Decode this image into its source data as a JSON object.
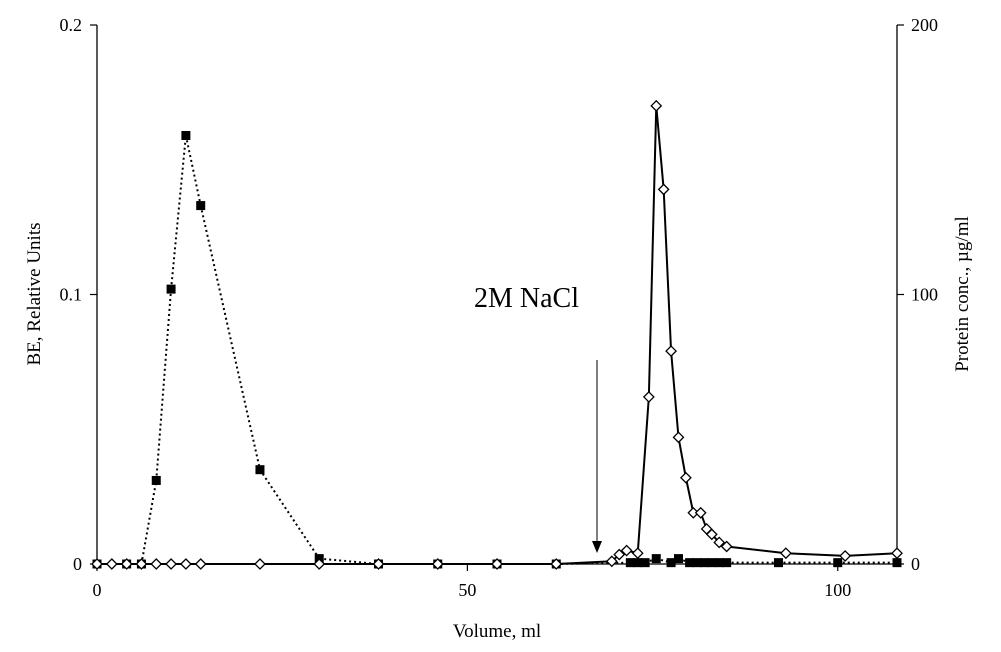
{
  "chart_data": {
    "type": "scatter",
    "xlabel": "Volume, ml",
    "ylabel_left": "BE, Relative Units",
    "ylabel_right": "Protein conc., µg/ml",
    "xlim": [
      0,
      108
    ],
    "ylim_left": [
      0,
      0.2
    ],
    "ylim_right": [
      0,
      200
    ],
    "x_ticks": [
      0,
      50,
      100
    ],
    "x_tick_labels": [
      "0",
      "50",
      "100"
    ],
    "y_left_ticks": [
      0,
      0.1,
      0.2
    ],
    "y_left_tick_labels": [
      "0",
      "0.1",
      "0.2"
    ],
    "y_right_ticks": [
      0,
      100,
      200
    ],
    "y_right_tick_labels": [
      "0",
      "100",
      "200"
    ],
    "grid": false,
    "annotation": {
      "text": "2M NaCl",
      "x": 67.5
    },
    "series": [
      {
        "axis": "left",
        "marker": "filled-square",
        "line": "dotted",
        "points": [
          [
            0,
            0
          ],
          [
            4,
            0
          ],
          [
            6,
            0
          ],
          [
            8,
            0.031
          ],
          [
            10,
            0.102
          ],
          [
            12,
            0.159
          ],
          [
            14,
            0.133
          ],
          [
            22,
            0.035
          ],
          [
            30,
            0.002
          ],
          [
            38,
            0
          ],
          [
            46,
            0
          ],
          [
            54,
            0
          ],
          [
            62,
            0
          ],
          [
            72,
            0.0005
          ],
          [
            73,
            0.0005
          ],
          [
            74,
            0.0005
          ],
          [
            75.5,
            0.002
          ],
          [
            77.5,
            0.0005
          ],
          [
            78.5,
            0.002
          ],
          [
            80,
            0.0005
          ],
          [
            81,
            0.0005
          ],
          [
            82,
            0.0005
          ],
          [
            83,
            0.0005
          ],
          [
            84,
            0.0005
          ],
          [
            85,
            0.0005
          ],
          [
            92,
            0.0005
          ],
          [
            100,
            0.0005
          ],
          [
            108,
            0.0005
          ]
        ]
      },
      {
        "axis": "right",
        "marker": "open-diamond",
        "line": "solid",
        "points": [
          [
            0,
            0
          ],
          [
            2,
            0
          ],
          [
            4,
            0
          ],
          [
            6,
            0
          ],
          [
            8,
            0
          ],
          [
            10,
            0
          ],
          [
            12,
            0
          ],
          [
            14,
            0
          ],
          [
            22,
            0
          ],
          [
            30,
            0
          ],
          [
            38,
            0
          ],
          [
            46,
            0
          ],
          [
            54,
            0
          ],
          [
            62,
            0
          ],
          [
            69.5,
            1
          ],
          [
            70.5,
            3.5
          ],
          [
            71.5,
            5
          ],
          [
            73,
            4
          ],
          [
            74.5,
            62
          ],
          [
            75.5,
            170
          ],
          [
            76.5,
            139
          ],
          [
            77.5,
            79
          ],
          [
            78.5,
            47
          ],
          [
            79.5,
            32
          ],
          [
            80.5,
            19
          ],
          [
            81.5,
            19
          ],
          [
            82.3,
            13
          ],
          [
            83,
            11
          ],
          [
            84,
            8
          ],
          [
            85,
            6.5
          ],
          [
            93,
            4
          ],
          [
            101,
            3
          ],
          [
            108,
            4
          ]
        ]
      }
    ]
  }
}
